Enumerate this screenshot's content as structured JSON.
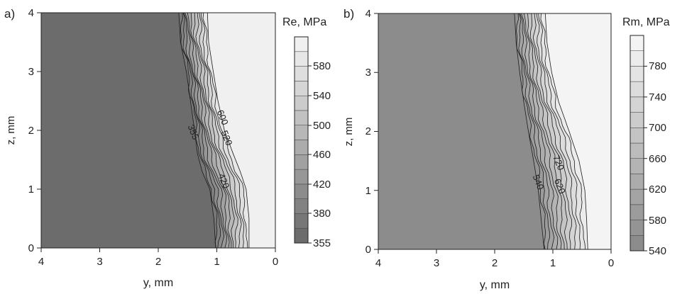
{
  "panels": [
    {
      "label": "a)",
      "colorbar_title": "Re, MPa",
      "ylabel": "z, mm",
      "xlabel": "y, mm",
      "x_ticks": [
        "4",
        "3",
        "2",
        "1",
        "0"
      ],
      "y_ticks": [
        "0",
        "1",
        "2",
        "3",
        "4"
      ],
      "colorbar_ticks": [
        "355",
        "380",
        "420",
        "460",
        "500",
        "540",
        "580"
      ],
      "contour_labels": [
        "600",
        "520",
        "355",
        "420"
      ]
    },
    {
      "label": "b)",
      "colorbar_title": "Rm, MPa",
      "ylabel": "z, mm",
      "xlabel": "y, mm",
      "x_ticks": [
        "4",
        "3",
        "2",
        "1",
        "0"
      ],
      "y_ticks": [
        "0",
        "1",
        "2",
        "3",
        "4"
      ],
      "colorbar_ticks": [
        "540",
        "580",
        "620",
        "660",
        "700",
        "740",
        "780"
      ],
      "contour_labels": [
        "720",
        "620",
        "540"
      ]
    }
  ],
  "chart_data": [
    {
      "type": "heatmap",
      "subtype": "filled-contour",
      "title": "",
      "xlabel": "y, mm",
      "ylabel": "z, mm",
      "xlim": [
        4,
        0
      ],
      "ylim": [
        0,
        4
      ],
      "colorbar_title": "Re, MPa",
      "colorbar_ticks": [
        355,
        380,
        420,
        460,
        500,
        540,
        580
      ],
      "levels": [
        355,
        380,
        400,
        420,
        440,
        460,
        480,
        500,
        520,
        540,
        560,
        580,
        600,
        620
      ],
      "level_colors": [
        "#6c6c6c",
        "#777777",
        "#828282",
        "#8c8c8c",
        "#979797",
        "#a1a1a1",
        "#acacac",
        "#b7b7b7",
        "#c1c1c1",
        "#cbcbcb",
        "#d5d5d5",
        "#dedede",
        "#e7e7e7",
        "#f0f0f0"
      ],
      "boundary_inner": {
        "z": [
          0,
          0.5,
          1.0,
          1.3,
          1.6,
          2.0,
          2.5,
          3.0,
          3.5,
          4.0
        ],
        "y": [
          1.02,
          1.05,
          1.12,
          1.25,
          1.33,
          1.38,
          1.45,
          1.52,
          1.62,
          1.65
        ]
      },
      "boundary_outer": {
        "z": [
          0,
          0.5,
          1.0,
          1.3,
          1.6,
          2.0,
          2.5,
          3.0,
          3.5,
          4.0
        ],
        "y": [
          0.45,
          0.45,
          0.5,
          0.6,
          0.72,
          0.87,
          0.98,
          1.06,
          1.14,
          1.16
        ]
      },
      "contour_labels": [
        {
          "text": "600",
          "y": 0.95,
          "z": 2.2
        },
        {
          "text": "520",
          "y": 0.88,
          "z": 1.85
        },
        {
          "text": "355",
          "y": 1.45,
          "z": 1.95
        },
        {
          "text": "420",
          "y": 0.93,
          "z": 1.12
        }
      ]
    },
    {
      "type": "heatmap",
      "subtype": "filled-contour",
      "title": "",
      "xlabel": "y, mm",
      "ylabel": "z, mm",
      "xlim": [
        4,
        0
      ],
      "ylim": [
        0,
        4
      ],
      "colorbar_title": "Rm, MPa",
      "colorbar_ticks": [
        540,
        580,
        620,
        660,
        700,
        740,
        780
      ],
      "levels": [
        540,
        560,
        580,
        600,
        620,
        640,
        660,
        680,
        700,
        720,
        740,
        760,
        780,
        800
      ],
      "level_colors": [
        "#8c8c8c",
        "#949494",
        "#9c9c9c",
        "#a4a4a4",
        "#acacac",
        "#b4b4b4",
        "#bcbcbc",
        "#c4c4c4",
        "#cccccc",
        "#d4d4d4",
        "#dcdcdc",
        "#e4e4e4",
        "#ececec",
        "#f4f4f4"
      ],
      "boundary_inner": {
        "z": [
          0,
          0.5,
          1.0,
          1.5,
          2.0,
          2.5,
          3.0,
          3.5,
          4.0
        ],
        "y": [
          1.15,
          1.2,
          1.25,
          1.33,
          1.42,
          1.5,
          1.57,
          1.63,
          1.66
        ]
      },
      "boundary_outer": {
        "z": [
          0,
          0.5,
          1.0,
          1.5,
          2.0,
          2.5,
          3.0,
          3.5,
          4.0
        ],
        "y": [
          0.4,
          0.42,
          0.45,
          0.55,
          0.72,
          0.9,
          1.02,
          1.1,
          1.13
        ]
      },
      "contour_labels": [
        {
          "text": "720",
          "y": 0.95,
          "z": 1.45
        },
        {
          "text": "620",
          "y": 0.93,
          "z": 1.05
        },
        {
          "text": "540",
          "y": 1.3,
          "z": 1.12
        }
      ]
    }
  ]
}
